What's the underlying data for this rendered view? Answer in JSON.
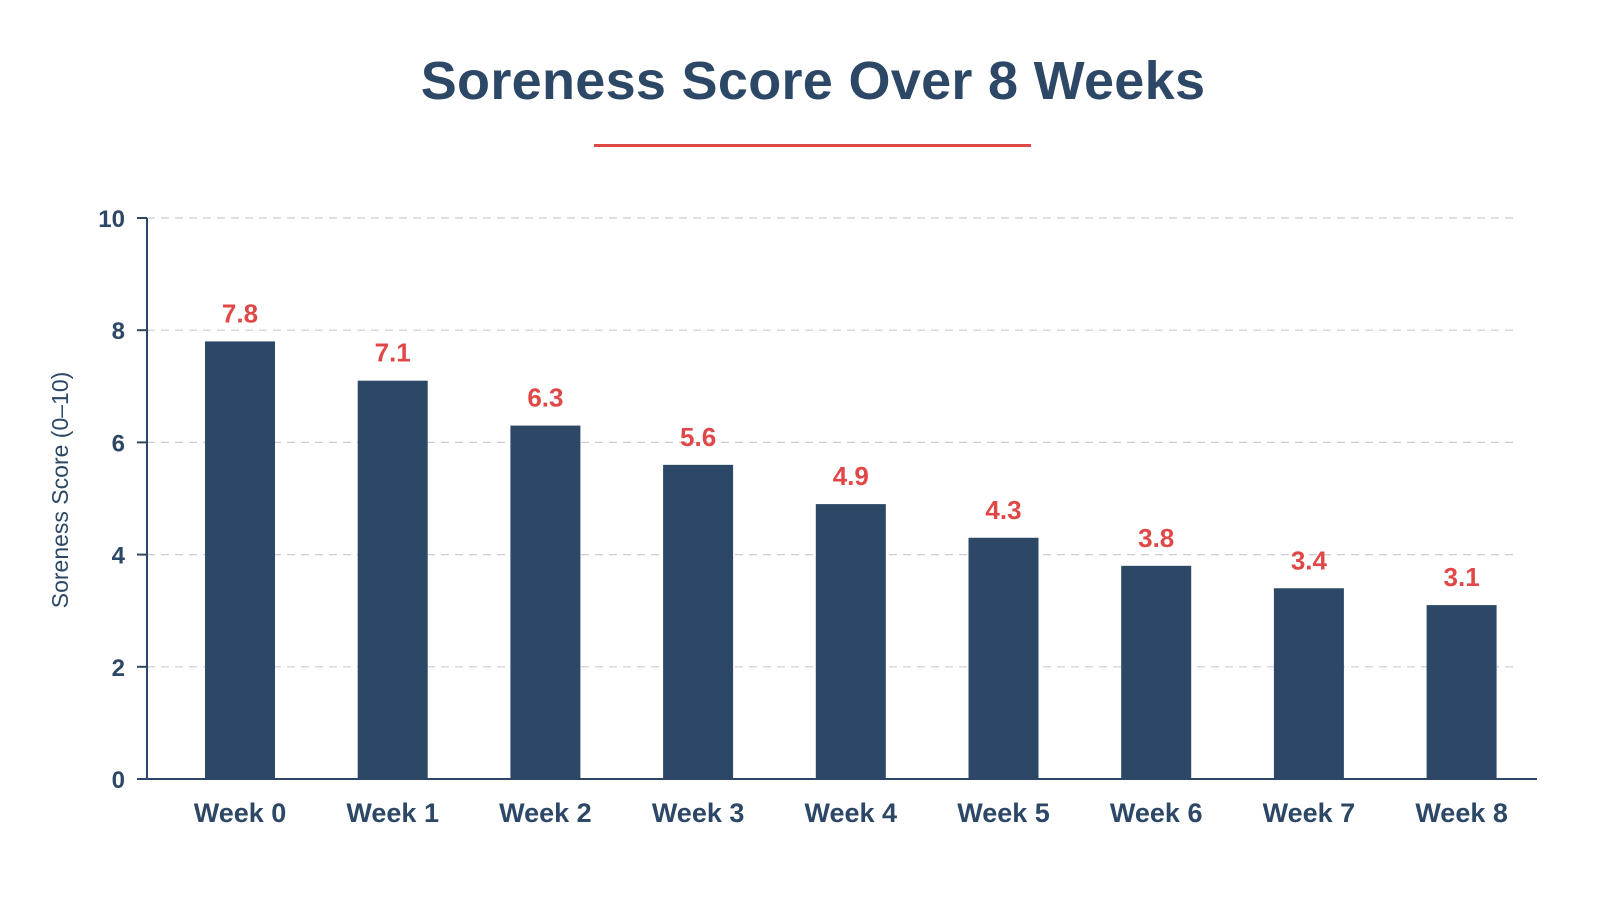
{
  "chart_data": {
    "type": "bar",
    "title": "Soreness Score Over 8 Weeks",
    "ylabel": "Soreness Score (0–10)",
    "xlabel": "",
    "categories": [
      "Week 0",
      "Week 1",
      "Week 2",
      "Week 3",
      "Week 4",
      "Week 5",
      "Week 6",
      "Week 7",
      "Week 8"
    ],
    "values": [
      7.8,
      7.1,
      6.3,
      5.6,
      4.9,
      4.3,
      3.8,
      3.4,
      3.1
    ],
    "value_labels": [
      "7.8",
      "7.1",
      "6.3",
      "5.6",
      "4.9",
      "4.3",
      "3.8",
      "3.4",
      "3.1"
    ],
    "ylim": [
      0,
      10
    ],
    "yticks": [
      0,
      2,
      4,
      6,
      8,
      10
    ],
    "grid": true,
    "colors": {
      "bar": "#2c4866",
      "value_label": "#e04848",
      "title_underline": "#e04848",
      "grid": "#c9ced6",
      "axis": "#2c4866"
    }
  }
}
